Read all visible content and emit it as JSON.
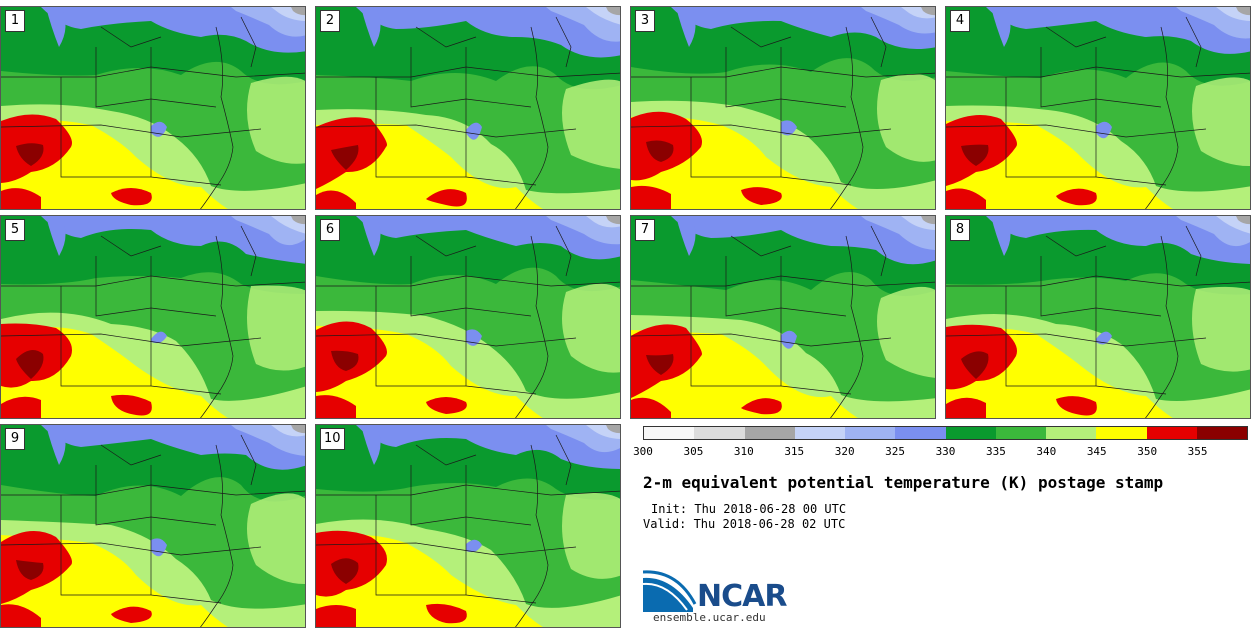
{
  "map_title": "2-m equivalent potential temperature (K) postage stamp",
  "init_label": "Init: Thu 2018-06-28 00 UTC",
  "valid_label": "Valid: Thu 2018-06-28 02 UTC",
  "brand": {
    "name": "NCAR",
    "url": "ensemble.ucar.edu",
    "blue": "#0a6bb0",
    "dark": "#1a4c8b"
  },
  "members": [
    "1",
    "2",
    "3",
    "4",
    "5",
    "6",
    "7",
    "8",
    "9",
    "10"
  ],
  "colorbar": {
    "ticks": [
      "300",
      "305",
      "310",
      "315",
      "320",
      "325",
      "330",
      "335",
      "340",
      "345",
      "350",
      "355"
    ],
    "colors": [
      "#f7f7f7",
      "#dcdcdc",
      "#a6a6a6",
      "#c5d3f7",
      "#9fb3f3",
      "#7b8ff0",
      "#0a9a2e",
      "#3bb83b",
      "#b4f07a",
      "#ffff00",
      "#e60000",
      "#8b0000"
    ]
  },
  "field_colors": {
    "cold": "#c5d3f7",
    "cool": "#9fb3f3",
    "mild": "#7b8ff0",
    "green_dark": "#0a9a2e",
    "green": "#3bb83b",
    "green_light": "#b4f07a",
    "yellow": "#ffff00",
    "red": "#e60000",
    "dark_red": "#8b0000",
    "land_gray": "#a6a6a6"
  }
}
